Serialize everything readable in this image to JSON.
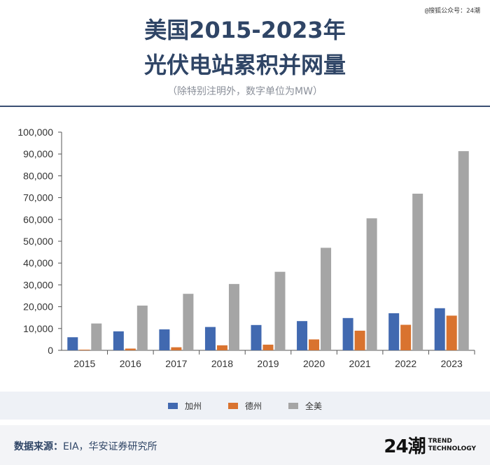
{
  "watermark": "@搜狐公众号：24潮",
  "header": {
    "title_line1": "美国2015-2023年",
    "title_line2": "光伏电站累积并网量",
    "subtitle": "（除特别注明外，数字单位为MW）"
  },
  "colors": {
    "ca": "#4169b0",
    "tx": "#d9732f",
    "us": "#a5a5a5",
    "title": "#2f4566"
  },
  "chart_data": {
    "type": "bar",
    "categories": [
      "2015",
      "2016",
      "2017",
      "2018",
      "2019",
      "2020",
      "2021",
      "2022",
      "2023"
    ],
    "series": [
      {
        "name": "加州",
        "values": [
          6000,
          8700,
          9600,
          10700,
          11600,
          13400,
          14800,
          17000,
          19300
        ]
      },
      {
        "name": "德州",
        "values": [
          300,
          800,
          1400,
          2300,
          2600,
          5000,
          9000,
          11700,
          15900
        ]
      },
      {
        "name": "全美",
        "values": [
          12300,
          20500,
          25900,
          30400,
          36000,
          47000,
          60500,
          71800,
          91300
        ]
      }
    ],
    "ylim": [
      0,
      100000
    ],
    "yticks": [
      "0",
      "10,000",
      "20,000",
      "30,000",
      "40,000",
      "50,000",
      "60,000",
      "70,000",
      "80,000",
      "90,000",
      "100,000"
    ],
    "legend_position": "bottom",
    "grid": false
  },
  "footer": {
    "source_label": "数据来源：",
    "source_text": "EIA，华安证券研究所",
    "logo_mark": "24潮",
    "logo_line1": "TREND",
    "logo_line2": "TECHNOLOGY"
  }
}
